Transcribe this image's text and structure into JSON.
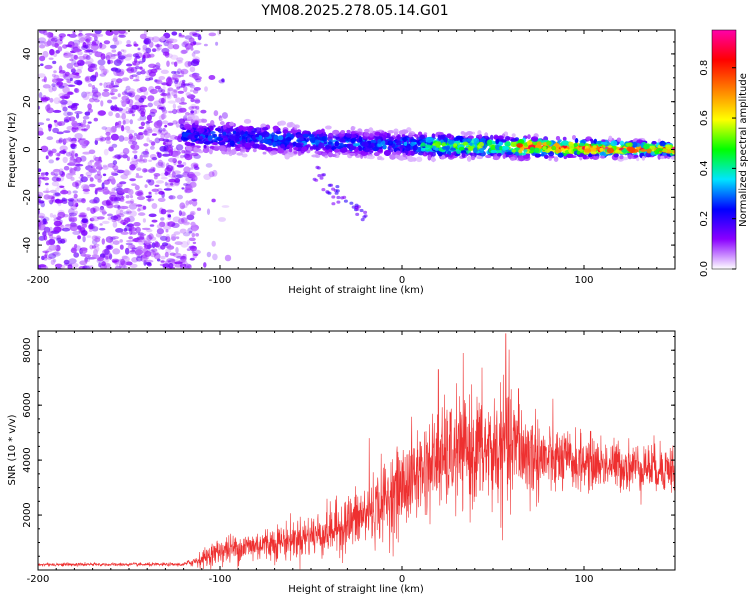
{
  "figure_title": "YM08.2025.278.05.14.G01",
  "chart_data": [
    {
      "type": "heatmap",
      "name": "spectrogram",
      "xlabel": "Height of straight line (km)",
      "ylabel": "Frequency (Hz)",
      "xlim": [
        -200,
        150
      ],
      "ylim": [
        -50,
        50
      ],
      "xticks": [
        -200,
        -100,
        0,
        100
      ],
      "yticks": [
        -40,
        -20,
        0,
        20,
        40
      ],
      "xtick_labels": [
        "-200",
        "-100",
        "0",
        "100"
      ],
      "ytick_labels": [
        "-40",
        "-20",
        "0",
        "20",
        "40"
      ],
      "colorbar": {
        "label": "Normalized spectral amplitude",
        "range": [
          0,
          0.95
        ],
        "ticks": [
          0.0,
          0.2,
          0.4,
          0.6,
          0.8
        ],
        "tick_labels": [
          "0.0",
          "0.2",
          "0.4",
          "0.6",
          "0.8"
        ],
        "colormap": [
          "#ffffff",
          "#8a00ff",
          "#0000ff",
          "#00e5ff",
          "#00ff00",
          "#ffff00",
          "#ff8000",
          "#ff0000",
          "#ff00aa"
        ]
      },
      "regions": [
        {
          "description": "broadband noise",
          "x": [
            -200,
            -112
          ],
          "freq": [
            -50,
            50
          ],
          "amplitude": 0.05
        },
        {
          "description": "signal band",
          "x": [
            -120,
            150
          ],
          "center_freq": [
            [
              -120,
              6
            ],
            [
              -60,
              4
            ],
            [
              -40,
              3
            ],
            [
              0,
              2
            ],
            [
              60,
              1
            ],
            [
              150,
              0
            ]
          ],
          "halfwidth": [
            [
              -120,
              8
            ],
            [
              0,
              6
            ],
            [
              150,
              3
            ]
          ],
          "peak_amplitude": [
            [
              -120,
              0.25
            ],
            [
              -60,
              0.3
            ],
            [
              0,
              0.3
            ],
            [
              20,
              0.5
            ],
            [
              60,
              0.55
            ],
            [
              65,
              0.8
            ],
            [
              150,
              0.85
            ]
          ]
        }
      ]
    },
    {
      "type": "line",
      "name": "snr",
      "xlabel": "Height of straight line (km)",
      "ylabel": "SNR (10 * v/v)",
      "xlim": [
        -200,
        150
      ],
      "ylim": [
        0,
        8700
      ],
      "xticks": [
        -200,
        -100,
        0,
        100
      ],
      "yticks": [
        2000,
        4000,
        6000,
        8000
      ],
      "xtick_labels": [
        "-200",
        "-100",
        "0",
        "100"
      ],
      "ytick_labels": [
        "2000",
        "4000",
        "6000",
        "8000"
      ],
      "color": "#ee3030",
      "envelope_x": [
        -200,
        -120,
        -110,
        -100,
        -80,
        -60,
        -40,
        -20,
        0,
        10,
        20,
        30,
        40,
        50,
        60,
        70,
        80,
        100,
        120,
        150
      ],
      "envelope_mean": [
        200,
        200,
        400,
        700,
        900,
        1100,
        1400,
        2000,
        3000,
        3600,
        4000,
        4200,
        4400,
        4300,
        4400,
        4200,
        4000,
        3900,
        3800,
        3700
      ],
      "envelope_spread": [
        60,
        60,
        300,
        500,
        600,
        700,
        900,
        1200,
        1600,
        1700,
        1800,
        2000,
        2100,
        2200,
        2200,
        1800,
        1300,
        1000,
        900,
        900
      ],
      "peaks": [
        [
          -18,
          4800
        ],
        [
          20,
          7300
        ],
        [
          30,
          6800
        ],
        [
          57,
          8600
        ],
        [
          64,
          6600
        ]
      ]
    }
  ]
}
